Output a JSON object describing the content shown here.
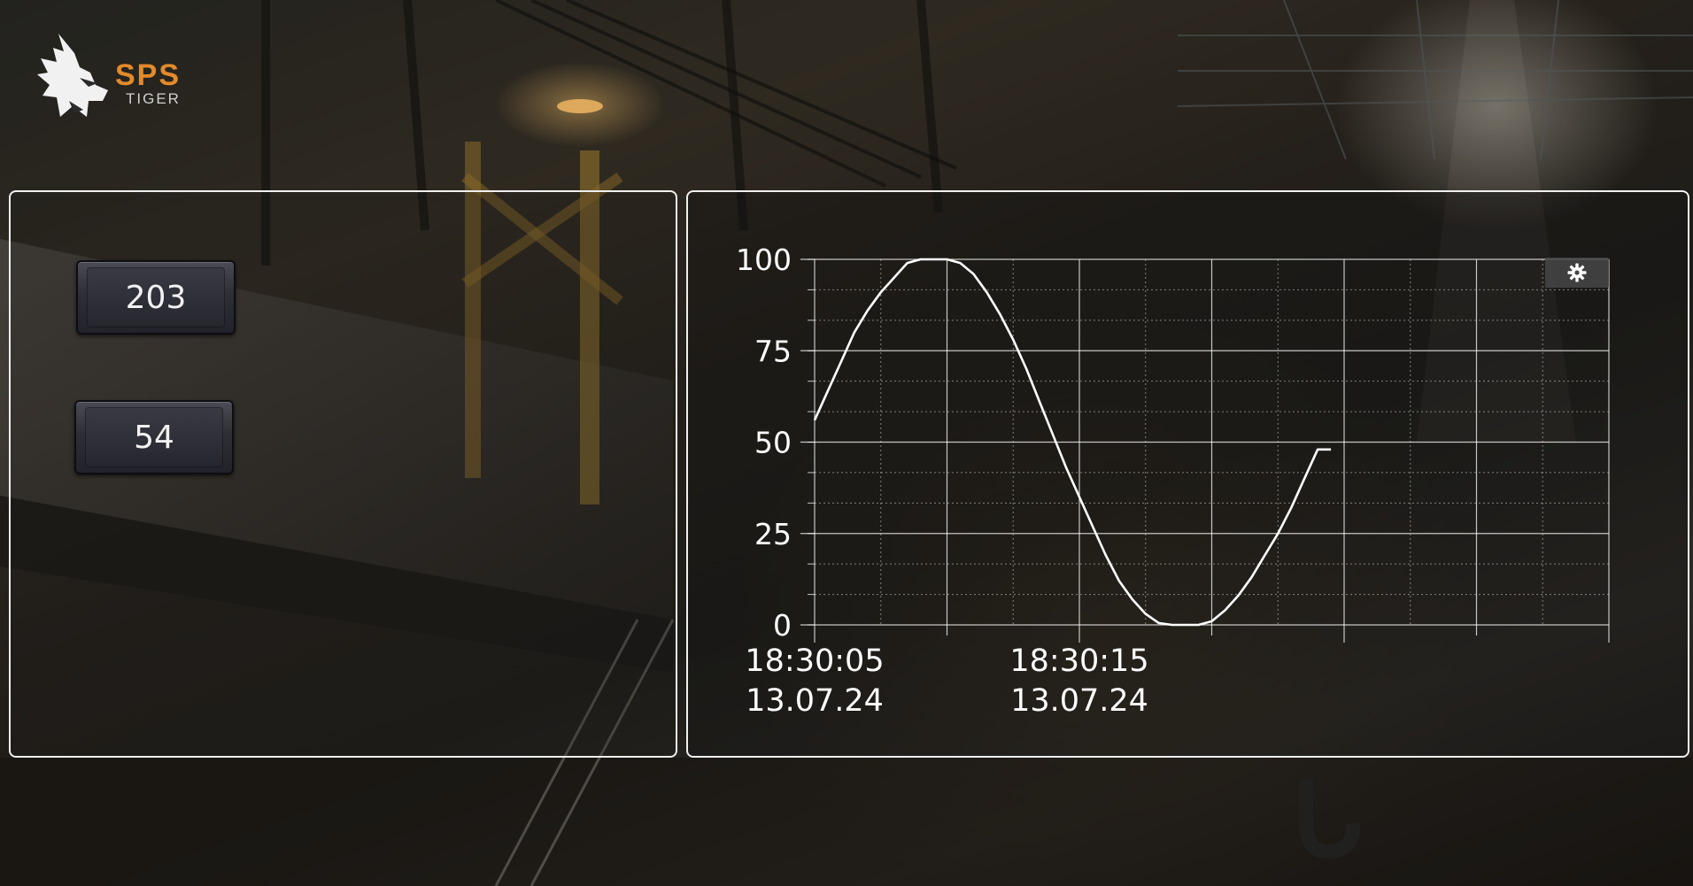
{
  "brand": {
    "name": "SPS",
    "subtitle": "TIGER"
  },
  "left_panel": {
    "values": [
      {
        "label": "203"
      },
      {
        "label": "54"
      }
    ]
  },
  "trend": {
    "settings_icon": "gear-icon"
  },
  "colors": {
    "brand_orange": "#e38a2a",
    "panel_border": "#f0f0f0",
    "line": "#ffffff"
  },
  "chart_data": {
    "type": "line",
    "title": "",
    "xlabel": "",
    "ylabel": "",
    "ylim": [
      0,
      100
    ],
    "yticks": [
      "0",
      "25",
      "50",
      "75",
      "100"
    ],
    "x_tick_labels": [
      {
        "time": "18:30:05",
        "date": "13.07.24",
        "t": 0
      },
      {
        "time": "18:30:15",
        "date": "13.07.24",
        "t": 10
      }
    ],
    "xlim": [
      0,
      30
    ],
    "grid": true,
    "series": [
      {
        "t": [
          0,
          0.5,
          1,
          1.5,
          2,
          2.5,
          3,
          3.5,
          4,
          4.5,
          5,
          5.5,
          6,
          6.5,
          7,
          7.5,
          8,
          8.5,
          9,
          9.5,
          10,
          10.5,
          11,
          11.5,
          12,
          12.5,
          13,
          13.5,
          14,
          14.5,
          15,
          15.5,
          16,
          16.5,
          17,
          17.5,
          18,
          18.5,
          19,
          19.5
        ],
        "values": [
          56,
          64,
          72,
          80,
          86,
          91,
          95,
          99,
          100,
          100,
          100,
          99,
          96,
          91,
          85,
          78,
          70,
          61,
          52,
          43,
          35,
          27,
          19,
          12,
          7,
          3,
          0.5,
          0,
          0,
          0,
          1,
          4,
          8,
          13,
          19,
          25,
          32,
          40,
          48,
          48
        ]
      }
    ]
  }
}
